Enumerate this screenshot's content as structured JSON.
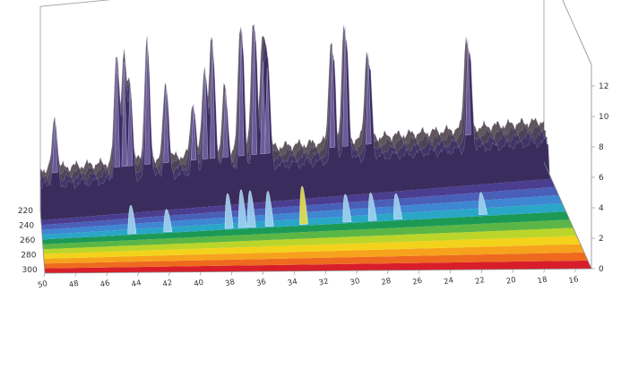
{
  "chart_data": {
    "type": "area",
    "title": "",
    "x_ticks": [
      "50",
      "48",
      "46",
      "44",
      "42",
      "40",
      "38",
      "36",
      "34",
      "32",
      "30",
      "28",
      "26",
      "24",
      "22",
      "20",
      "18",
      "16"
    ],
    "y_ticks": [
      "220",
      "240",
      "260",
      "280",
      "300"
    ],
    "z_ticks": [
      "0",
      "2",
      "4",
      "6",
      "8",
      "10",
      "12"
    ],
    "xlim": [
      50,
      15
    ],
    "ylim": [
      220,
      305
    ],
    "zlim": [
      0,
      13
    ],
    "grid": false,
    "band_colors": [
      "#d81e2a",
      "#ee6a1f",
      "#f6a21c",
      "#f3d21b",
      "#bcd52a",
      "#5bb646",
      "#1c9a55",
      "#2aa6c7",
      "#3f86d3",
      "#4a5fb8",
      "#4b3d8f",
      "#3a2d5e"
    ],
    "series": [
      {
        "x": 49.0,
        "height": 3.4
      },
      {
        "x": 44.7,
        "height": 7.2
      },
      {
        "x": 44.2,
        "height": 6.8
      },
      {
        "x": 43.8,
        "height": 5.2
      },
      {
        "x": 42.6,
        "height": 8.1
      },
      {
        "x": 41.3,
        "height": 5.0
      },
      {
        "x": 39.4,
        "height": 3.6
      },
      {
        "x": 38.6,
        "height": 5.7
      },
      {
        "x": 38.1,
        "height": 7.6
      },
      {
        "x": 37.2,
        "height": 4.3
      },
      {
        "x": 36.1,
        "height": 8.3
      },
      {
        "x": 35.2,
        "height": 8.5
      },
      {
        "x": 34.6,
        "height": 6.0
      },
      {
        "x": 34.3,
        "height": 5.6
      },
      {
        "x": 29.8,
        "height": 6.8
      },
      {
        "x": 28.9,
        "height": 7.8
      },
      {
        "x": 27.3,
        "height": 5.9
      },
      {
        "x": 20.4,
        "height": 6.2
      }
    ],
    "projections": [
      {
        "x": 44.0,
        "height": 3.4
      },
      {
        "x": 41.6,
        "height": 2.6
      },
      {
        "x": 37.5,
        "height": 4.2
      },
      {
        "x": 36.6,
        "height": 4.6
      },
      {
        "x": 36.0,
        "height": 4.4
      },
      {
        "x": 34.8,
        "height": 4.2
      },
      {
        "x": 32.5,
        "height": 4.6
      },
      {
        "x": 29.6,
        "height": 3.2
      },
      {
        "x": 27.9,
        "height": 3.2
      },
      {
        "x": 26.2,
        "height": 2.9
      },
      {
        "x": 20.5,
        "height": 2.4
      }
    ]
  }
}
